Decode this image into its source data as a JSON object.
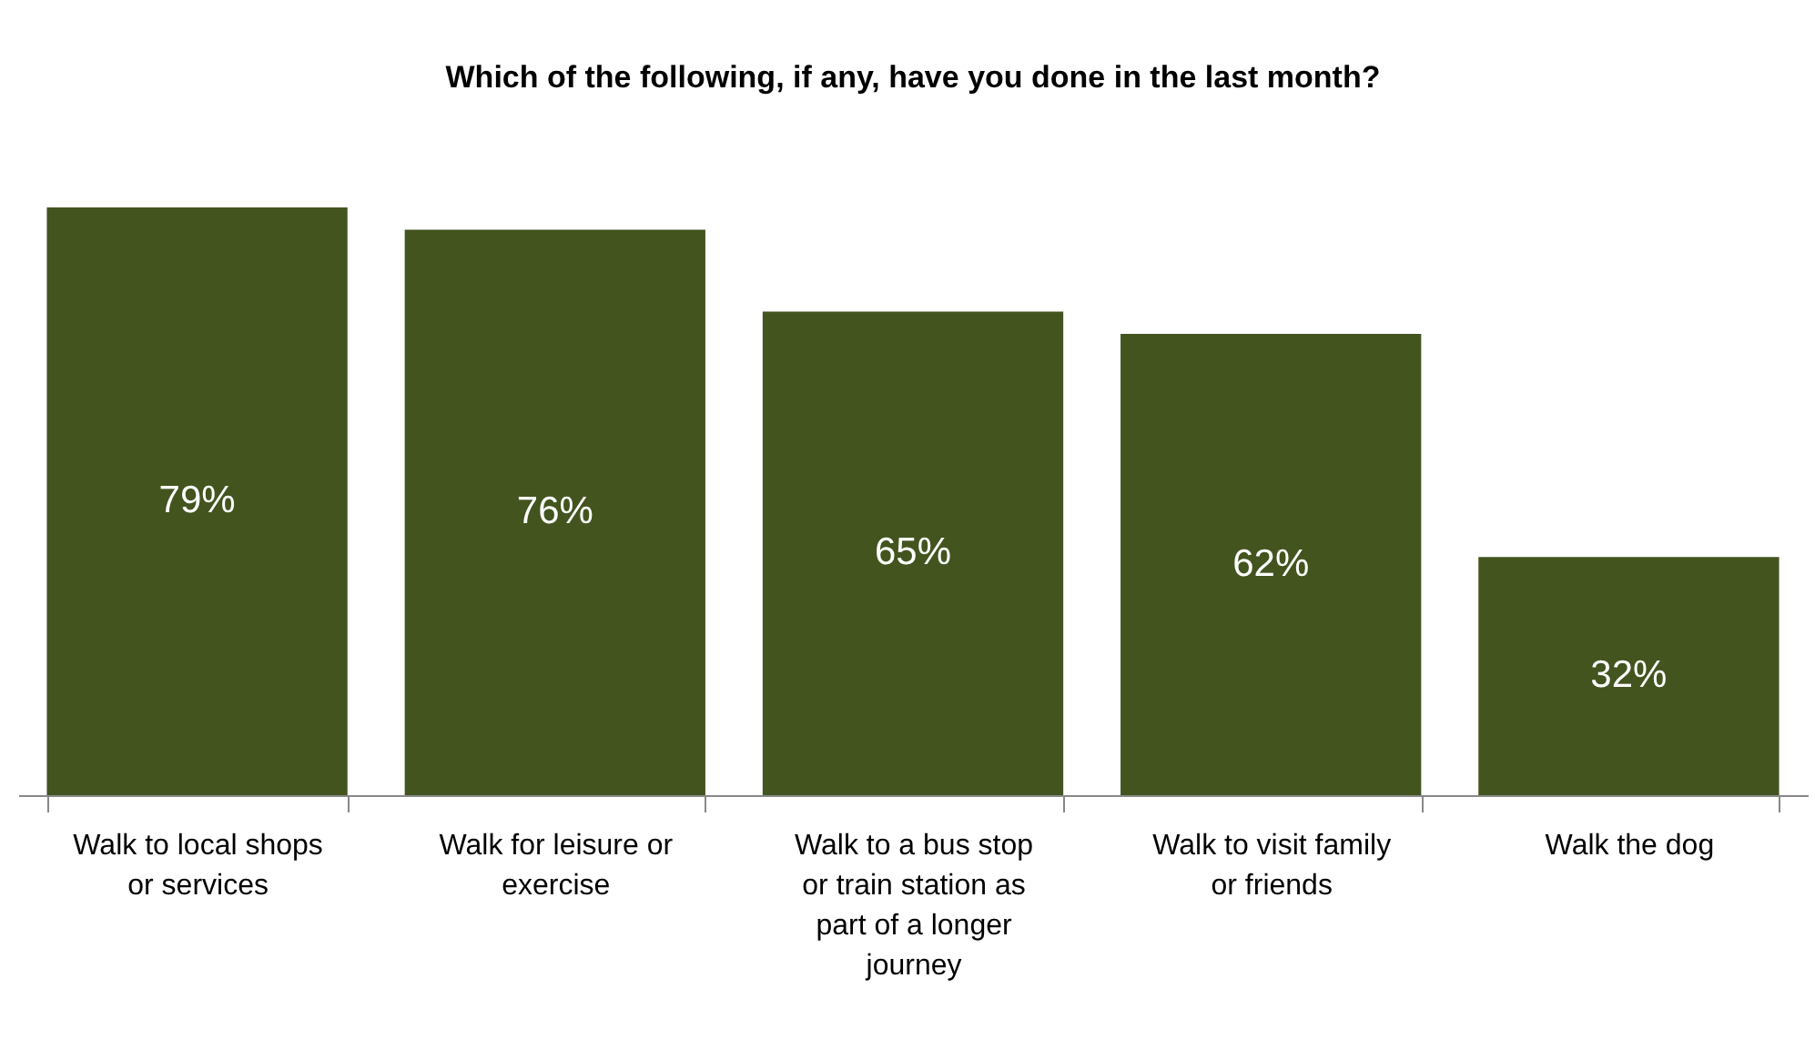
{
  "chart_data": {
    "type": "bar",
    "title": "Which of the following, if any, have you done in the last month?",
    "categories": [
      "Walk to local shops or services",
      "Walk for leisure or exercise",
      "Walk to a bus stop or train station as part of a longer journey",
      "Walk to visit family or friends",
      "Walk the dog"
    ],
    "values": [
      79,
      76,
      65,
      62,
      32
    ],
    "color": "#43541f",
    "value_labels": [
      "79%",
      "76%",
      "65%",
      "62%",
      "32%"
    ],
    "tick_labels": "x",
    "grid": false
  }
}
